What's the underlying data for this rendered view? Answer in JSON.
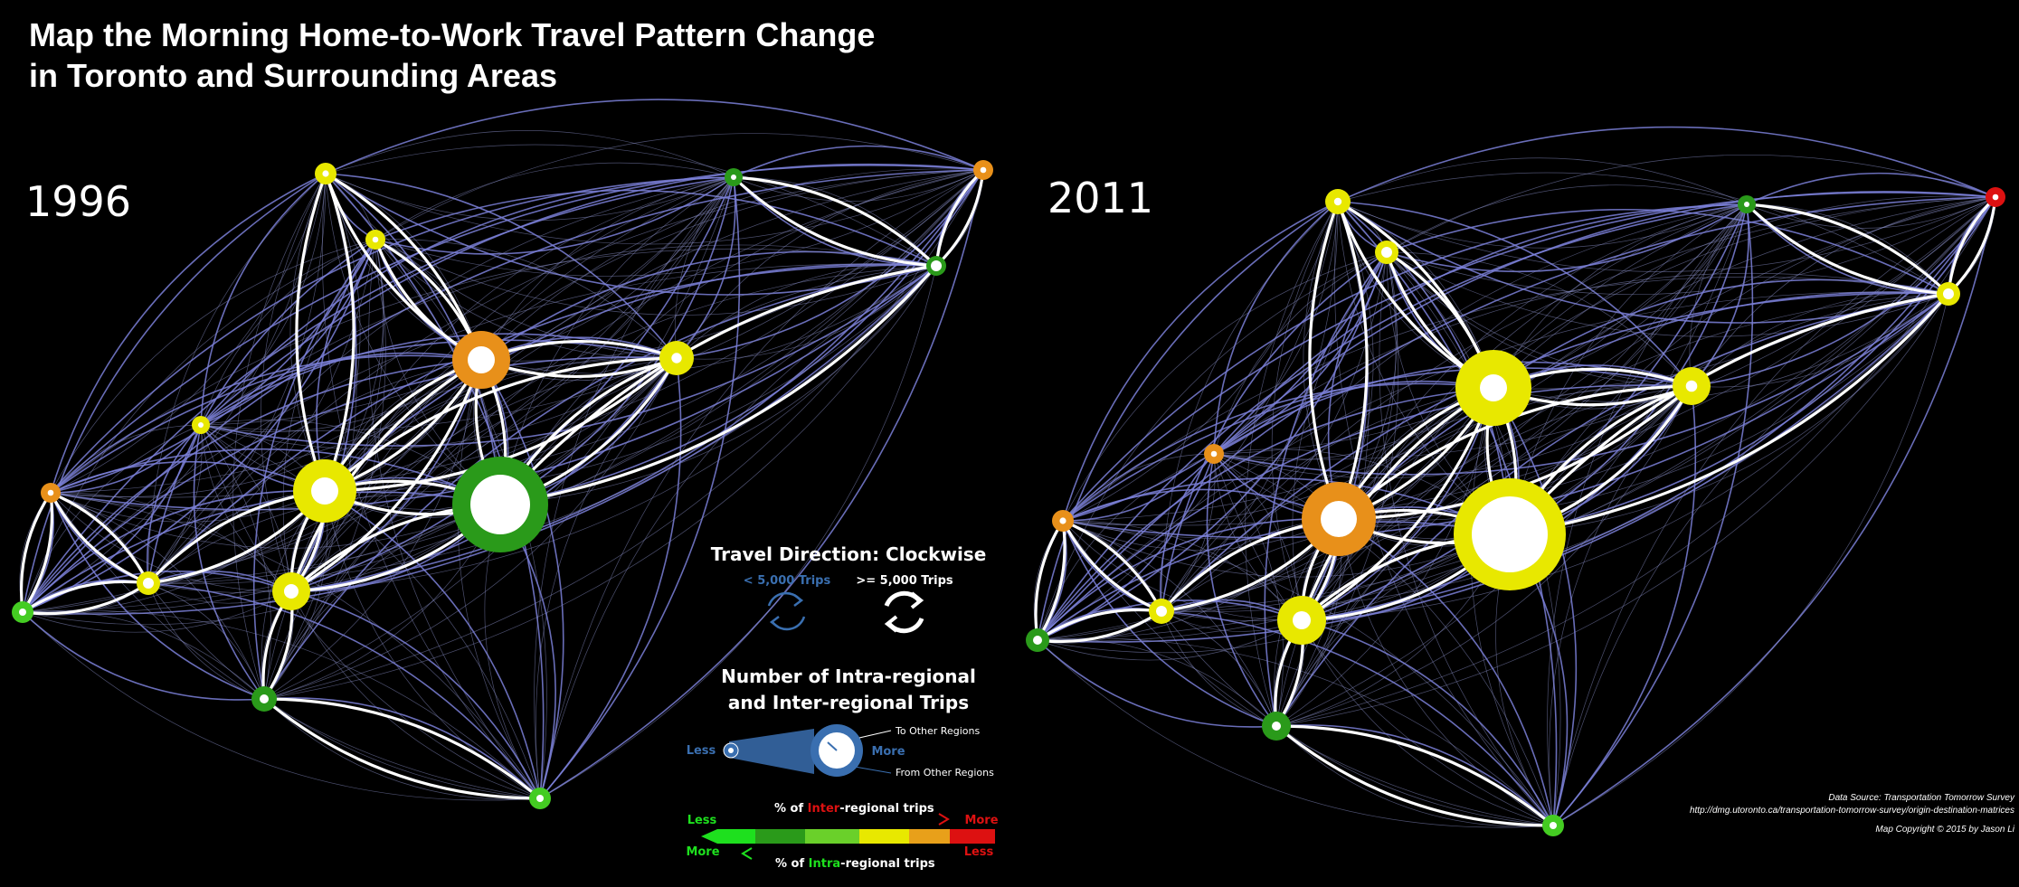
{
  "title_line1": "Map the Morning Home-to-Work Travel Pattern Change",
  "title_line2": "in Toronto and Surrounding Areas",
  "panels": [
    {
      "year": "1996",
      "nodes": [
        {
          "id": "a",
          "color": "#e8e800",
          "ring": "thick"
        },
        {
          "id": "b",
          "color": "#e8e800",
          "ring": "thick"
        },
        {
          "id": "c",
          "color": "#2a9a1a",
          "ring": "thin"
        },
        {
          "id": "d",
          "color": "#e8901a",
          "ring": "thin"
        },
        {
          "id": "e",
          "color": "#2a9a1a",
          "ring": "thin"
        },
        {
          "id": "f",
          "color": "#e8901a",
          "ring": "thick"
        },
        {
          "id": "g",
          "color": "#e8e800",
          "ring": "thick"
        },
        {
          "id": "h",
          "color": "#e8e800",
          "ring": "thin"
        },
        {
          "id": "i",
          "color": "#e8e800",
          "ring": "thick"
        },
        {
          "id": "j",
          "color": "#2a9a1a",
          "ring": "thick"
        },
        {
          "id": "k",
          "color": "#e8901a",
          "ring": "thin"
        },
        {
          "id": "l",
          "color": "#e8e800",
          "ring": "thin"
        },
        {
          "id": "m",
          "color": "#e8e800",
          "ring": "thick"
        },
        {
          "id": "n",
          "color": "#44cc22",
          "ring": "thin"
        },
        {
          "id": "o",
          "color": "#2a9a1a",
          "ring": "thin"
        },
        {
          "id": "p",
          "color": "#44cc22",
          "ring": "thin"
        }
      ]
    },
    {
      "year": "2011",
      "nodes": [
        {
          "id": "a",
          "color": "#e8e800",
          "ring": "thick"
        },
        {
          "id": "b",
          "color": "#e8e800",
          "ring": "thick"
        },
        {
          "id": "c",
          "color": "#2a9a1a",
          "ring": "thin"
        },
        {
          "id": "d",
          "color": "#dd1111",
          "ring": "thin"
        },
        {
          "id": "e",
          "color": "#e8e800",
          "ring": "thin"
        },
        {
          "id": "f",
          "color": "#e8e800",
          "ring": "thick"
        },
        {
          "id": "g",
          "color": "#e8e800",
          "ring": "thick"
        },
        {
          "id": "h",
          "color": "#e8901a",
          "ring": "thin"
        },
        {
          "id": "i",
          "color": "#e8901a",
          "ring": "thick"
        },
        {
          "id": "j",
          "color": "#e8e800",
          "ring": "thick"
        },
        {
          "id": "k",
          "color": "#e8901a",
          "ring": "thin"
        },
        {
          "id": "l",
          "color": "#e8e800",
          "ring": "thin"
        },
        {
          "id": "m",
          "color": "#e8e800",
          "ring": "thick"
        },
        {
          "id": "n",
          "color": "#2a9a1a",
          "ring": "thin"
        },
        {
          "id": "o",
          "color": "#2a9a1a",
          "ring": "thin"
        },
        {
          "id": "p",
          "color": "#44cc22",
          "ring": "thin"
        }
      ]
    }
  ],
  "legend": {
    "direction_title": "Travel Direction: Clockwise",
    "small_trips": "< 5,000 Trips",
    "large_trips": ">= 5,000 Trips",
    "trips_title_1": "Number of Intra-regional",
    "trips_title_2": "and Inter-regional Trips",
    "less": "Less",
    "more": "More",
    "to_other": "To Other Regions",
    "from_other": "From Other Regions",
    "inter_prefix": "% of ",
    "inter_word": "Inter",
    "inter_suffix": "-regional trips",
    "intra_prefix": "% of ",
    "intra_word": "Intra",
    "intra_suffix": "-regional trips",
    "scale_less": "Less",
    "scale_more": "More",
    "scale_more_left": "More",
    "scale_less_right": "Less"
  },
  "colors": {
    "background": "#000000",
    "flow_small": "#7b80d8",
    "flow_large": "#ffffff",
    "less_blue": "#3a6fb0",
    "green": "#1ee01e",
    "dark_green": "#2a9a1a",
    "yellow": "#e8e800",
    "orange": "#e8901a",
    "red": "#dd1111"
  },
  "credits": {
    "source": "Data Source: Transportation Tomorrow Survey",
    "url": "http://dmg.utoronto.ca/transportation-tomorrow-survey/origin-destination-matrices",
    "copyright": "Map Copyright © 2015 by Jason Li"
  }
}
